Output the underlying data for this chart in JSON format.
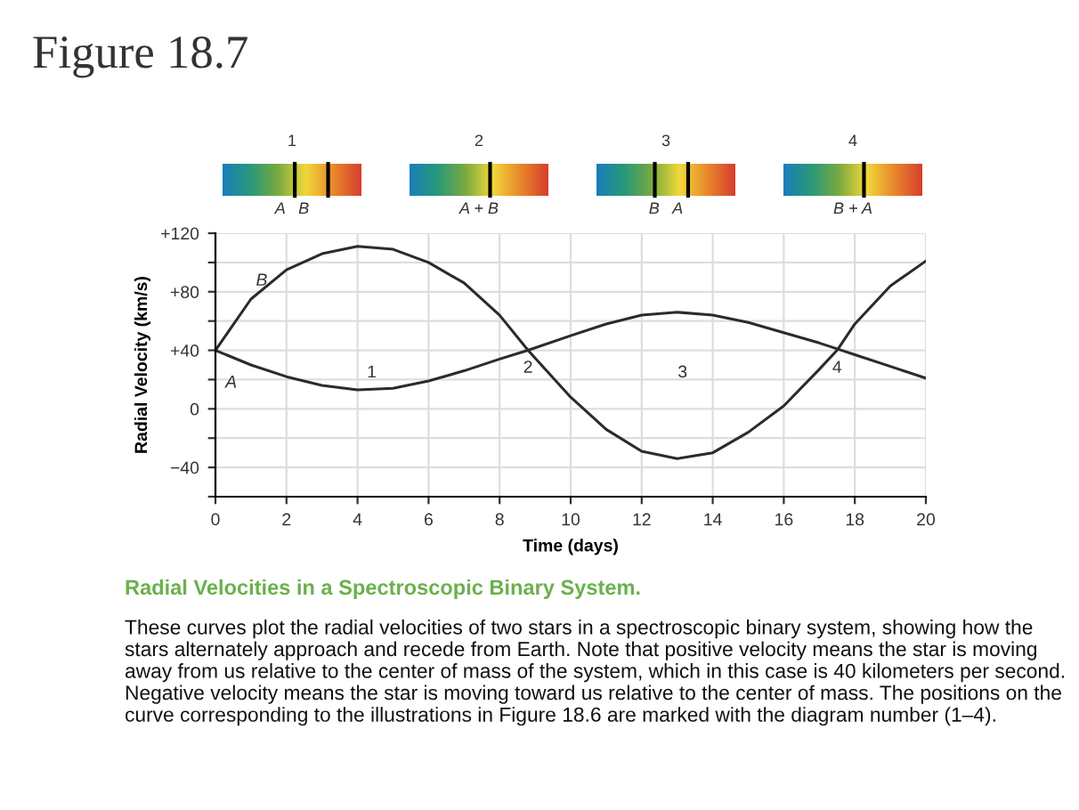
{
  "chart_data": {
    "type": "line",
    "title": "Figure 18.7",
    "xlabel": "Time (days)",
    "ylabel": "Radial Velocity (km/s)",
    "x": [
      0,
      1,
      2,
      3,
      4,
      5,
      6,
      7,
      8,
      8.8,
      10,
      11,
      12,
      13,
      14,
      15,
      16,
      17,
      17.5,
      18,
      19,
      20
    ],
    "series": [
      {
        "name": "A",
        "color": "#2b2b2b",
        "values": [
          40,
          30,
          22,
          16,
          13,
          14,
          19,
          26,
          34,
          40,
          50,
          58,
          64,
          66,
          64,
          59,
          52,
          45,
          41,
          37,
          29,
          21
        ]
      },
      {
        "name": "B",
        "color": "#2b2b2b",
        "values": [
          40,
          75,
          95,
          106,
          111,
          109,
          100,
          86,
          64,
          40,
          8,
          -14,
          -29,
          -34,
          -30,
          -16,
          2,
          27,
          40,
          58,
          84,
          101
        ]
      }
    ],
    "xlim": [
      0,
      20
    ],
    "xticks": [
      0,
      2,
      4,
      6,
      8,
      10,
      12,
      14,
      16,
      18,
      20
    ],
    "ylim": [
      -60,
      120
    ],
    "yticks": [
      {
        "value": -60,
        "label": null
      },
      {
        "value": -40,
        "label": "−40"
      },
      {
        "value": -20,
        "label": null
      },
      0,
      {
        "value": 20,
        "label": null
      },
      {
        "value": 40,
        "label": "+40"
      },
      {
        "value": 60,
        "label": null
      },
      {
        "value": 80,
        "label": "+80"
      },
      {
        "value": 100,
        "label": null
      },
      {
        "value": 120,
        "label": "+120"
      }
    ],
    "grid": true,
    "marker": "none",
    "line_style": "solid",
    "legend": false,
    "annotations": [
      "1",
      "A   B",
      "2",
      "A + B",
      "3",
      "B   A",
      "4",
      "B + A",
      "Radial Velocities in a Spectroscopic Binary System.",
      "These curves plot the radial velocities of two stars in a spectroscopic binary system, showing how the stars alternately approach and recede from Earth. Note that positive velocity means the star is moving away from us relative to the center of mass of the system, which in this case is 40 kilometers per second. Negative velocity means the star is moving toward us relative to the center of mass. The positions on the curve corresponding to the illustrations in Figure 18.6 are marked with the diagram number (1–4).",
      "1",
      {
        "text": "2",
        "x": 8.8,
        "y": 40
      },
      "3",
      {
        "text": "4",
        "x": 17.5,
        "y": 40
      }
    ]
  }
}
